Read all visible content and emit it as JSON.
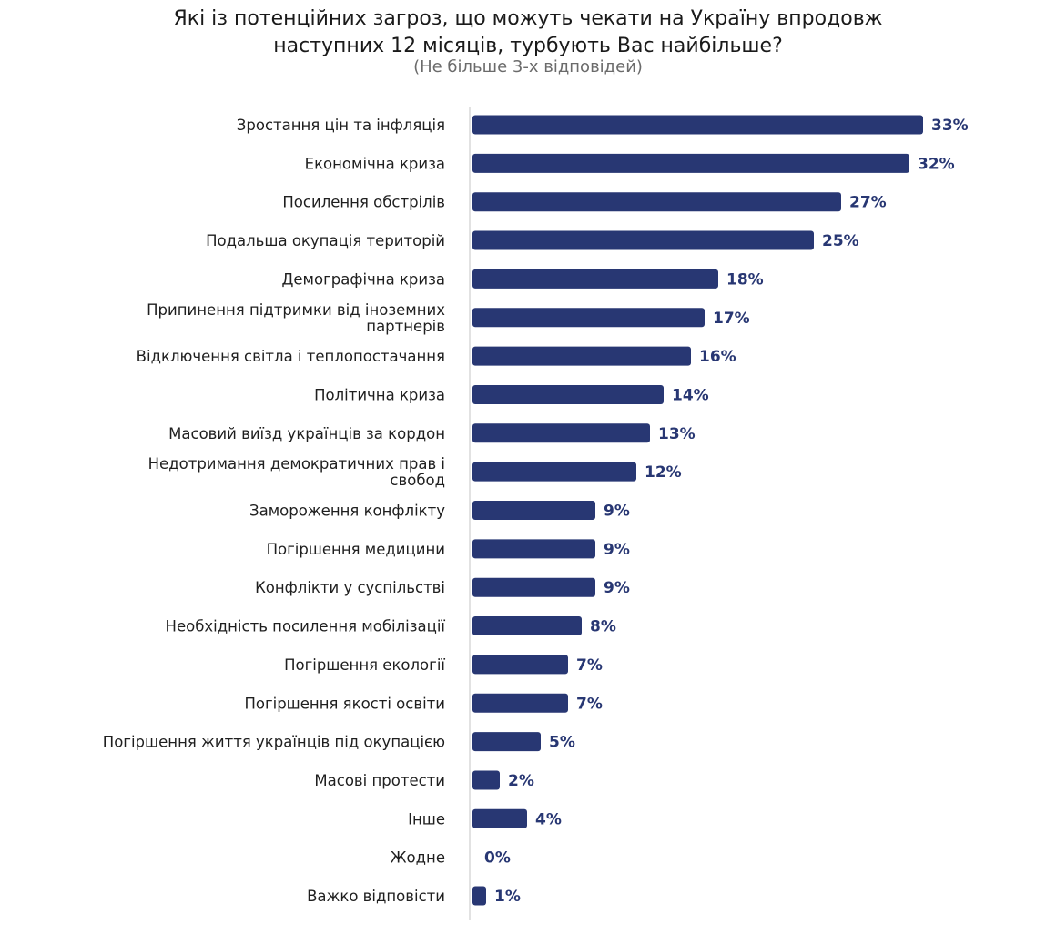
{
  "chart_data": {
    "type": "bar",
    "orientation": "horizontal",
    "title": "Які із потенційних загроз, що можуть чекати на Україну впродовж наступних 12 місяців, турбують Вас найбільше?",
    "title_lines": [
      "Які із потенційних загроз, що можуть чекати на Україну впродовж",
      "наступних 12 місяців, турбують Вас найбільше?"
    ],
    "subtitle": "(Не більше 3-х відповідей)",
    "bar_color": "#283773",
    "unit": "%",
    "xlim": [
      0,
      33
    ],
    "grid": false,
    "categories": [
      "Зростання цін та інфляція",
      "Економічна криза",
      "Посилення обстрілів",
      "Подальша окупація територій",
      "Демографічна криза",
      "Припинення підтримки від іноземних\nпартнерів",
      "Відключення світла і теплопостачання",
      "Політична криза",
      "Масовий виїзд українців за кордон",
      "Недотримання демократичних прав і\nсвобод",
      "Замороження конфлікту",
      "Погіршення медицини",
      "Конфлікти у суспільстві",
      "Необхідність посилення мобілізації",
      "Погіршення екології",
      "Погіршення якості освіти",
      "Погіршення життя українців під окупацією",
      "Масові протести",
      "Інше",
      "Жодне",
      "Важко відповісти"
    ],
    "values": [
      33,
      32,
      27,
      25,
      18,
      17,
      16,
      14,
      13,
      12,
      9,
      9,
      9,
      8,
      7,
      7,
      5,
      2,
      4,
      0,
      1
    ],
    "value_labels": [
      "33%",
      "32%",
      "27%",
      "25%",
      "18%",
      "17%",
      "16%",
      "14%",
      "13%",
      "12%",
      "9%",
      "9%",
      "9%",
      "8%",
      "7%",
      "7%",
      "5%",
      "2%",
      "4%",
      "0%",
      "1%"
    ]
  }
}
